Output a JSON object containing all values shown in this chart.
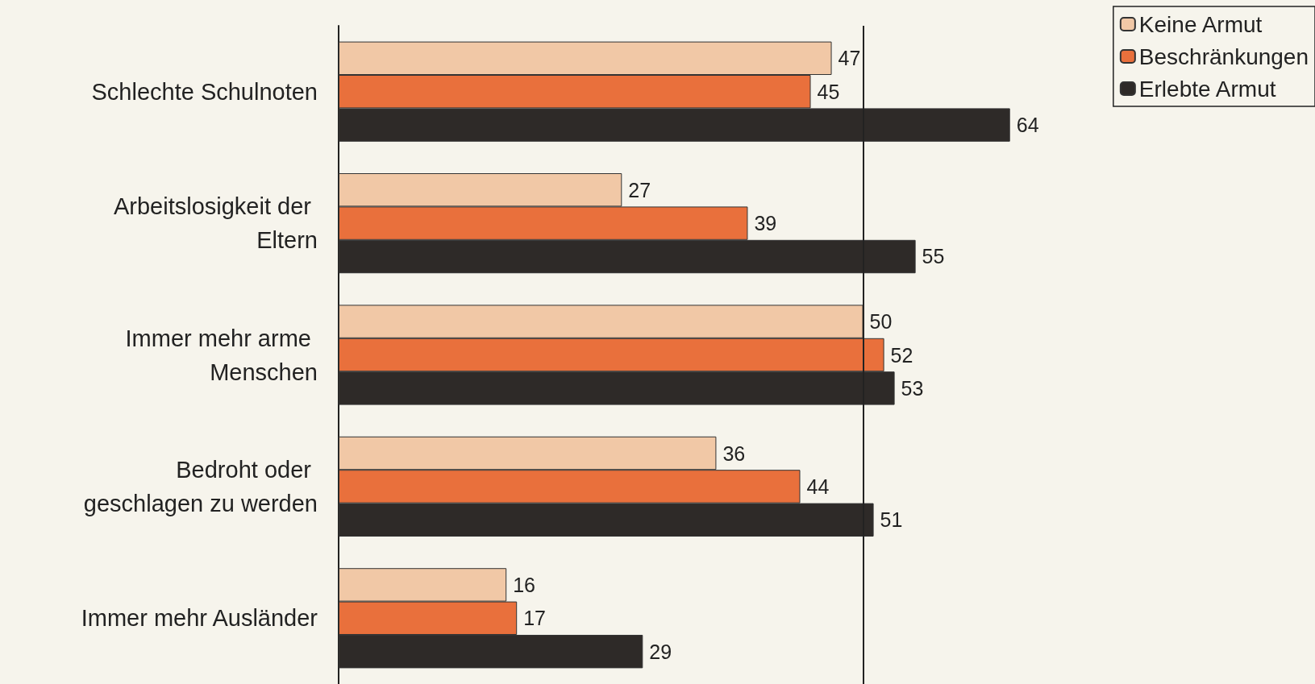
{
  "chart_data": {
    "type": "bar",
    "orientation": "horizontal",
    "categories": [
      "Schlechte Schulnoten",
      "Arbeitslosigkeit der Eltern",
      "Immer mehr arme Menschen",
      "Bedroht oder geschlagen zu werden",
      "Immer mehr Ausländer"
    ],
    "series": [
      {
        "name": "Keine Armut",
        "color": "#f1c8a6",
        "values": [
          47,
          27,
          50,
          36,
          16
        ]
      },
      {
        "name": "Beschränkungen",
        "color": "#e9703c",
        "values": [
          45,
          39,
          52,
          44,
          17
        ]
      },
      {
        "name": "Erlebte Armut",
        "color": "#2e2a28",
        "values": [
          64,
          55,
          53,
          51,
          29
        ]
      }
    ],
    "data_labels": true,
    "legend": "top right",
    "tick_labels": "y",
    "ref_lines": [
      {
        "axis": "x",
        "value": 50,
        "color": "#222222"
      }
    ]
  }
}
